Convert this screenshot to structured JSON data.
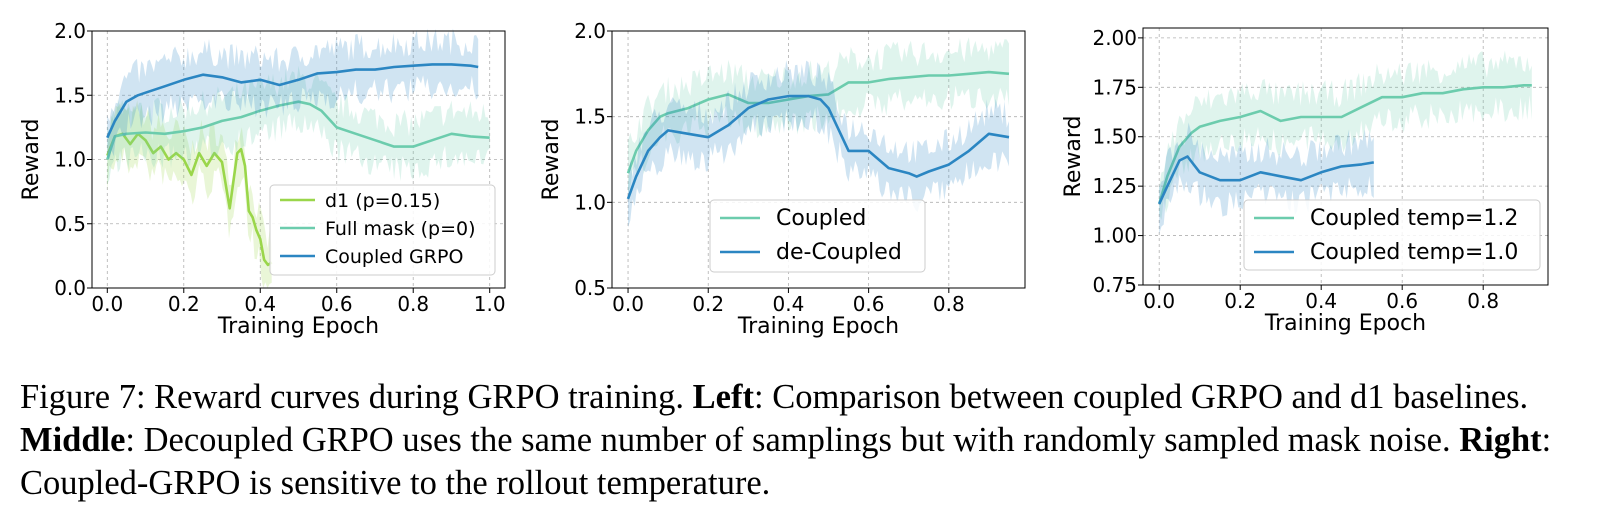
{
  "chart_data": [
    {
      "type": "line",
      "xlabel": "Training Epoch",
      "ylabel": "Reward",
      "xlim": [
        -0.04,
        1.04
      ],
      "ylim": [
        0.0,
        2.0
      ],
      "xticks": [
        "0.0",
        "0.2",
        "0.4",
        "0.6",
        "0.8",
        "1.0"
      ],
      "xtick_values": [
        0.0,
        0.2,
        0.4,
        0.6,
        0.8,
        1.0
      ],
      "yticks": [
        "0.0",
        "0.5",
        "1.0",
        "1.5",
        "2.0"
      ],
      "ytick_values": [
        0.0,
        0.5,
        1.0,
        1.5,
        2.0
      ],
      "grid": true,
      "legend_position": "lower right",
      "series": [
        {
          "name": "d1 (p=0.15)",
          "color": "#9ad64a",
          "x": [
            0.0,
            0.02,
            0.04,
            0.06,
            0.08,
            0.1,
            0.12,
            0.14,
            0.16,
            0.18,
            0.2,
            0.22,
            0.24,
            0.26,
            0.28,
            0.3,
            0.32,
            0.34,
            0.35,
            0.36,
            0.37,
            0.38,
            0.39,
            0.4,
            0.41,
            0.42,
            0.43
          ],
          "values": [
            1.03,
            1.18,
            1.2,
            1.12,
            1.2,
            1.15,
            1.05,
            1.1,
            1.0,
            1.05,
            1.0,
            0.88,
            1.05,
            0.95,
            1.05,
            0.98,
            0.62,
            1.05,
            1.08,
            0.95,
            0.6,
            0.55,
            0.45,
            0.38,
            0.22,
            0.18,
            0.2
          ]
        },
        {
          "name": "Full mask (p=0)",
          "color": "#6cccad",
          "x": [
            0.0,
            0.02,
            0.05,
            0.1,
            0.15,
            0.2,
            0.25,
            0.3,
            0.35,
            0.4,
            0.45,
            0.5,
            0.53,
            0.56,
            0.6,
            0.65,
            0.7,
            0.75,
            0.8,
            0.85,
            0.9,
            0.95,
            1.0
          ],
          "values": [
            1.0,
            1.18,
            1.2,
            1.21,
            1.2,
            1.22,
            1.25,
            1.3,
            1.33,
            1.38,
            1.42,
            1.45,
            1.43,
            1.38,
            1.25,
            1.2,
            1.15,
            1.1,
            1.1,
            1.15,
            1.2,
            1.18,
            1.17
          ]
        },
        {
          "name": "Coupled GRPO",
          "color": "#2b86c2",
          "x": [
            0.0,
            0.02,
            0.05,
            0.08,
            0.1,
            0.15,
            0.2,
            0.25,
            0.3,
            0.35,
            0.4,
            0.45,
            0.5,
            0.55,
            0.6,
            0.65,
            0.7,
            0.75,
            0.8,
            0.85,
            0.9,
            0.95,
            0.97
          ],
          "values": [
            1.17,
            1.3,
            1.45,
            1.5,
            1.52,
            1.57,
            1.62,
            1.66,
            1.64,
            1.6,
            1.62,
            1.58,
            1.62,
            1.67,
            1.68,
            1.7,
            1.7,
            1.72,
            1.73,
            1.74,
            1.74,
            1.73,
            1.72
          ]
        }
      ]
    },
    {
      "type": "line",
      "xlabel": "Training Epoch",
      "ylabel": "Reward",
      "xlim": [
        -0.04,
        0.99
      ],
      "ylim": [
        0.5,
        2.0
      ],
      "xticks": [
        "0.0",
        "0.2",
        "0.4",
        "0.6",
        "0.8"
      ],
      "xtick_values": [
        0.0,
        0.2,
        0.4,
        0.6,
        0.8
      ],
      "yticks": [
        "0.5",
        "1.0",
        "1.5",
        "2.0"
      ],
      "ytick_values": [
        0.5,
        1.0,
        1.5,
        2.0
      ],
      "grid": true,
      "legend_position": "lower left",
      "series": [
        {
          "name": "Coupled",
          "color": "#6cccad",
          "x": [
            0.0,
            0.02,
            0.05,
            0.08,
            0.1,
            0.15,
            0.2,
            0.25,
            0.3,
            0.35,
            0.4,
            0.45,
            0.5,
            0.55,
            0.6,
            0.65,
            0.7,
            0.75,
            0.8,
            0.85,
            0.9,
            0.95
          ],
          "values": [
            1.17,
            1.3,
            1.42,
            1.5,
            1.52,
            1.55,
            1.6,
            1.63,
            1.58,
            1.58,
            1.6,
            1.62,
            1.63,
            1.7,
            1.7,
            1.72,
            1.73,
            1.74,
            1.74,
            1.75,
            1.76,
            1.75
          ]
        },
        {
          "name": "de-Coupled",
          "color": "#2b86c2",
          "x": [
            0.0,
            0.02,
            0.05,
            0.08,
            0.1,
            0.15,
            0.2,
            0.25,
            0.3,
            0.35,
            0.4,
            0.45,
            0.48,
            0.5,
            0.55,
            0.6,
            0.65,
            0.7,
            0.72,
            0.75,
            0.8,
            0.85,
            0.9,
            0.95
          ],
          "values": [
            1.02,
            1.15,
            1.3,
            1.38,
            1.42,
            1.4,
            1.38,
            1.45,
            1.55,
            1.6,
            1.62,
            1.62,
            1.6,
            1.55,
            1.3,
            1.3,
            1.2,
            1.17,
            1.15,
            1.18,
            1.22,
            1.3,
            1.4,
            1.38
          ]
        }
      ]
    },
    {
      "type": "line",
      "xlabel": "Training Epoch",
      "ylabel": "Reward",
      "xlim": [
        -0.04,
        0.96
      ],
      "ylim": [
        0.75,
        2.05
      ],
      "xticks": [
        "0.0",
        "0.2",
        "0.4",
        "0.6",
        "0.8"
      ],
      "xtick_values": [
        0.0,
        0.2,
        0.4,
        0.6,
        0.8
      ],
      "yticks": [
        "0.75",
        "1.00",
        "1.25",
        "1.50",
        "1.75",
        "2.00"
      ],
      "ytick_values": [
        0.75,
        1.0,
        1.25,
        1.5,
        1.75,
        2.0
      ],
      "grid": true,
      "legend_position": "lower right",
      "series": [
        {
          "name": "Coupled temp=1.2",
          "color": "#6cccad",
          "x": [
            0.0,
            0.02,
            0.05,
            0.08,
            0.1,
            0.15,
            0.2,
            0.25,
            0.3,
            0.35,
            0.4,
            0.45,
            0.5,
            0.55,
            0.6,
            0.65,
            0.7,
            0.75,
            0.8,
            0.85,
            0.9,
            0.92
          ],
          "values": [
            1.16,
            1.3,
            1.45,
            1.52,
            1.55,
            1.58,
            1.6,
            1.63,
            1.58,
            1.6,
            1.6,
            1.6,
            1.65,
            1.7,
            1.7,
            1.72,
            1.72,
            1.74,
            1.75,
            1.75,
            1.76,
            1.76
          ]
        },
        {
          "name": "Coupled temp=1.0",
          "color": "#2b86c2",
          "x": [
            0.0,
            0.02,
            0.05,
            0.07,
            0.1,
            0.15,
            0.2,
            0.25,
            0.3,
            0.35,
            0.4,
            0.45,
            0.5,
            0.53
          ],
          "values": [
            1.16,
            1.25,
            1.38,
            1.4,
            1.32,
            1.28,
            1.28,
            1.32,
            1.3,
            1.28,
            1.32,
            1.35,
            1.36,
            1.37
          ]
        }
      ]
    }
  ],
  "caption": {
    "figure_label": "Figure 7:",
    "text1": " Reward curves during GRPO training. ",
    "left_label": "Left",
    "text2": ": Comparison between coupled GRPO and d1 baselines. ",
    "middle_label": "Middle",
    "text3": ": Decoupled GRPO uses the same number of samplings but with randomly sampled mask noise. ",
    "right_label": "Right",
    "text4": ": Coupled-GRPO is sensitive to the rollout temperature."
  }
}
